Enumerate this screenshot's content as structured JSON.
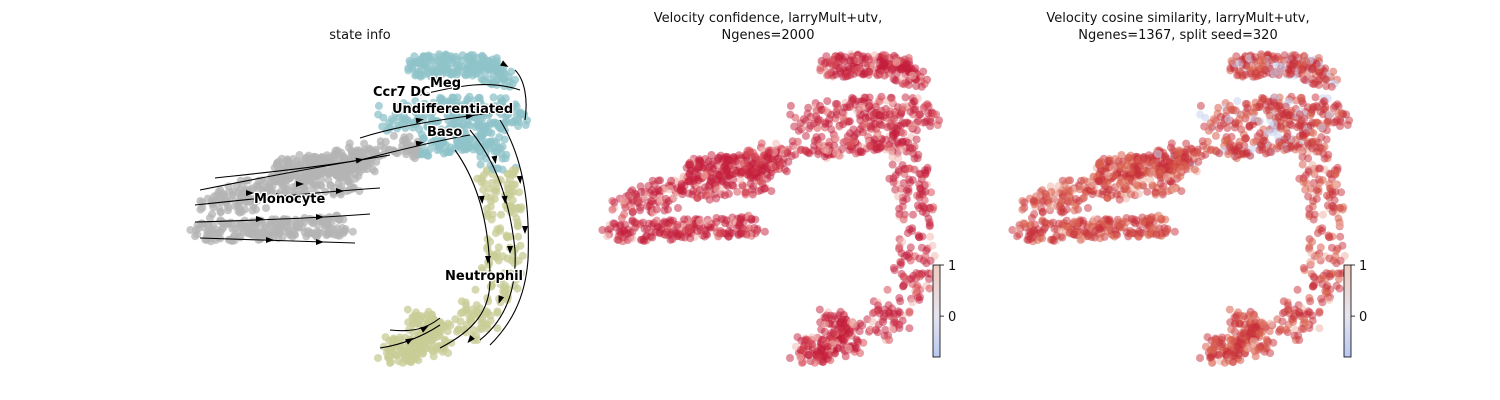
{
  "chart_data": [
    {
      "type": "scatter",
      "title": "state info",
      "xlabel": "",
      "ylabel": "",
      "annotations": [
        "Meg",
        "Ccr7 DC",
        "Undifferentiated",
        "Baso",
        "Monocyte",
        "Neutrophil"
      ],
      "cluster_colors": {
        "Monocyte": "#b4b4b4",
        "Undifferentiated": "#8fc3c9",
        "Meg": "#8fc3c9",
        "Neutrophil": "#c8cc96"
      },
      "streamlines": true
    },
    {
      "type": "scatter",
      "title": "Velocity confidence, larryMult+utv,\nNgenes=2000",
      "xlabel": "",
      "ylabel": "",
      "colormap": "coolwarm",
      "colorbar": {
        "ticks": [
          1,
          0
        ],
        "tick_labels": [
          "1",
          "0"
        ],
        "range": [
          -0.8,
          1
        ]
      },
      "dominant_color": "#c31d3c"
    },
    {
      "type": "scatter",
      "title": "Velocity cosine similarity, larryMult+utv,\nNgenes=1367, split seed=320",
      "xlabel": "",
      "ylabel": "",
      "colormap": "coolwarm",
      "colorbar": {
        "ticks": [
          1,
          0
        ],
        "tick_labels": [
          "1",
          "0"
        ],
        "range": [
          -0.8,
          1
        ]
      },
      "dominant_color": "#cc4a44"
    }
  ]
}
